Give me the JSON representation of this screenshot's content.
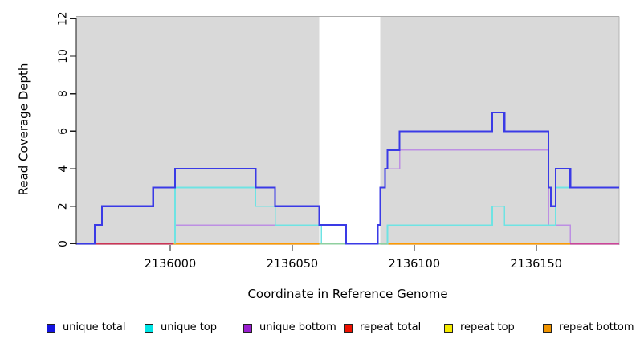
{
  "chart_data": {
    "type": "line",
    "subtype": "step-coverage",
    "title": "",
    "xlabel": "Coordinate in Reference Genome",
    "ylabel": "Read Coverage Depth",
    "xlim": [
      2135961.5,
      2136184
    ],
    "ylim": [
      0,
      12
    ],
    "x_ticks": [
      2136000,
      2136050,
      2136100,
      2136150
    ],
    "y_ticks": [
      0,
      2,
      4,
      6,
      8,
      10,
      12
    ],
    "grid": "off",
    "legend_position": "bottom",
    "plot_bg_color": "#ffffff",
    "region_note": "gray shaded blocks with a white uncovered gap between them",
    "background_regions": [
      {
        "name": "covered-block-left",
        "from": 2135961.5,
        "to": 2136061,
        "color": "#d9d9d9"
      },
      {
        "name": "uncovered-gap",
        "from": 2136061,
        "to": 2136086,
        "color": "#ffffff"
      },
      {
        "name": "covered-block-right",
        "from": 2136086,
        "to": 2136184,
        "color": "#d9d9d9"
      }
    ],
    "zero_line_segments": [
      {
        "series": "repeat total visible",
        "from": 2135961.5,
        "to": 2136001,
        "color": "#cc3355",
        "layer": 1
      },
      {
        "series": "repeat bottom visible",
        "from": 2136001,
        "to": 2136061,
        "color": "#ff9900",
        "layer": 1
      },
      {
        "series": "repeat bottom visible",
        "from": 2136089,
        "to": 2136164,
        "color": "#ff9900",
        "layer": 1
      },
      {
        "series": "unique bottom over repeat total",
        "from": 2136164,
        "to": 2136184,
        "color": "#cc4499",
        "layer": 1
      },
      {
        "series": "repeat top over unique top",
        "from": 2136061,
        "to": 2136089,
        "color": "#8fcf9f",
        "layer": 2
      }
    ],
    "series": [
      {
        "name": "unique bottom",
        "color": "#bd8fe3",
        "width": 1.7,
        "render": true,
        "end": 2136184,
        "path": [
          [
            2136002,
            0
          ],
          [
            2136002,
            1
          ],
          [
            2136072,
            0
          ],
          [
            2136085,
            1
          ],
          [
            2136086,
            3
          ],
          [
            2136088,
            4
          ],
          [
            2136094,
            5
          ],
          [
            2136155,
            1
          ],
          [
            2136164,
            0
          ]
        ]
      },
      {
        "name": "unique top",
        "color": "#6ee3e3",
        "width": 1.7,
        "render": true,
        "end": 2136184,
        "path": [
          [
            2136002,
            0
          ],
          [
            2136002,
            3
          ],
          [
            2136035,
            2
          ],
          [
            2136043,
            1
          ],
          [
            2136062,
            0
          ],
          [
            2136089,
            1
          ],
          [
            2136132,
            2
          ],
          [
            2136137,
            1
          ],
          [
            2136158,
            3
          ]
        ]
      },
      {
        "name": "unique total",
        "color": "#3a3ae6",
        "width": 2.1,
        "render": true,
        "end": 2136184,
        "path": [
          [
            2135961.5,
            0
          ],
          [
            2135969,
            1
          ],
          [
            2135972,
            2
          ],
          [
            2135993,
            3
          ],
          [
            2136002,
            4
          ],
          [
            2136035,
            3
          ],
          [
            2136043,
            2
          ],
          [
            2136061,
            1
          ],
          [
            2136072,
            0
          ],
          [
            2136085,
            1
          ],
          [
            2136086,
            3
          ],
          [
            2136088,
            4
          ],
          [
            2136089,
            5
          ],
          [
            2136094,
            6
          ],
          [
            2136132,
            7
          ],
          [
            2136137,
            6
          ],
          [
            2136155,
            3
          ],
          [
            2136156,
            2
          ],
          [
            2136158,
            4
          ],
          [
            2136164,
            3
          ]
        ]
      },
      {
        "name": "repeat total",
        "color": "#cc3355",
        "width": 1.5,
        "render": false,
        "end": 2136184,
        "path": [
          [
            2135961.5,
            0
          ]
        ]
      },
      {
        "name": "repeat top",
        "color": "#f0e800",
        "width": 1.5,
        "render": false,
        "end": 2136184,
        "path": [
          [
            2135961.5,
            0
          ]
        ]
      },
      {
        "name": "repeat bottom",
        "color": "#ff9900",
        "width": 1.5,
        "render": false,
        "end": 2136184,
        "path": [
          [
            2135961.5,
            0
          ]
        ]
      }
    ],
    "legend": [
      {
        "label": "unique total",
        "color": "#1414e0"
      },
      {
        "label": "unique top",
        "color": "#00e5e5"
      },
      {
        "label": "unique bottom",
        "color": "#9a1fd0"
      },
      {
        "label": "repeat total",
        "color": "#ee1100"
      },
      {
        "label": "repeat top",
        "color": "#f5ea00"
      },
      {
        "label": "repeat bottom",
        "color": "#f09400"
      }
    ]
  }
}
